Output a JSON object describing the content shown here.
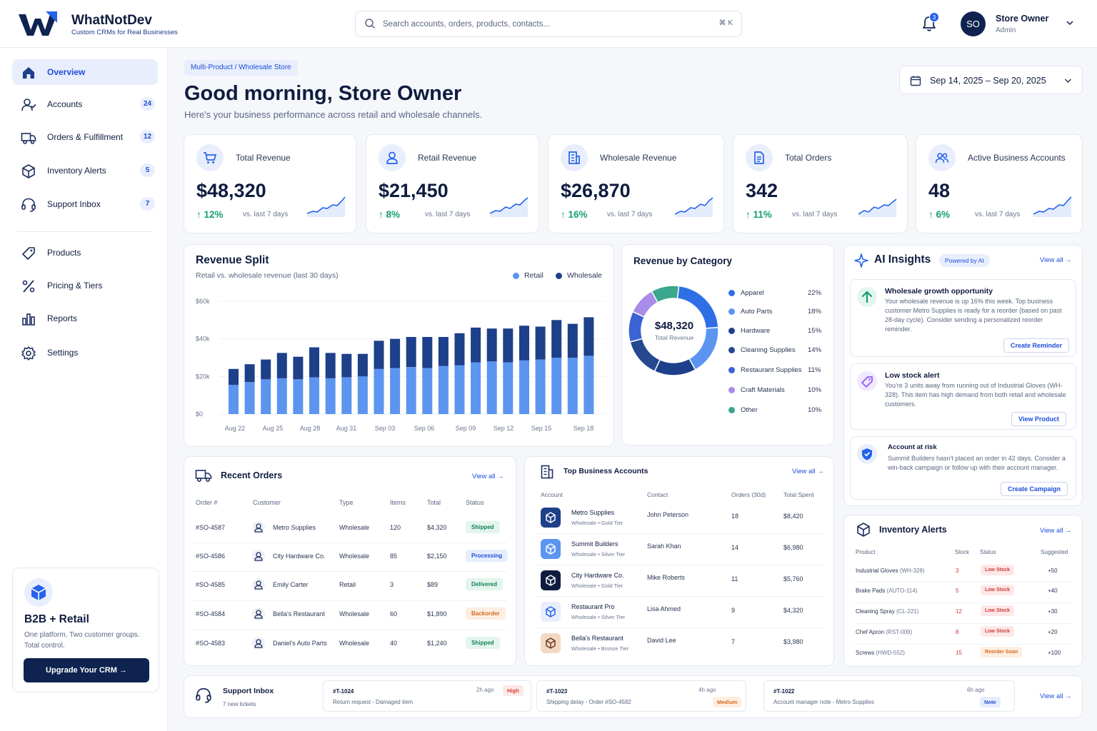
{
  "brand": {
    "name": "WhatNotDev",
    "tagline": "Custom CRMs for Real Businesses"
  },
  "search": {
    "placeholder": "Search accounts, orders, products, contacts...",
    "shortcut": "⌘ K"
  },
  "notifications": {
    "count": "3"
  },
  "user": {
    "initials": "SO",
    "name": "Store Owner",
    "role": "Admin"
  },
  "sidebar": {
    "items": [
      {
        "label": "Overview",
        "icon": "home-icon",
        "badge": ""
      },
      {
        "label": "Accounts",
        "icon": "users-icon",
        "badge": "24"
      },
      {
        "label": "Orders & Fulfillment",
        "icon": "truck-icon",
        "badge": "12"
      },
      {
        "label": "Inventory Alerts",
        "icon": "box-icon",
        "badge": "5"
      },
      {
        "label": "Support Inbox",
        "icon": "headset-icon",
        "badge": "7"
      },
      {
        "label": "Products",
        "icon": "tag-icon",
        "badge": ""
      },
      {
        "label": "Pricing & Tiers",
        "icon": "percent-icon",
        "badge": ""
      },
      {
        "label": "Reports",
        "icon": "bar-chart-icon",
        "badge": ""
      },
      {
        "label": "Settings",
        "icon": "gear-icon",
        "badge": ""
      }
    ],
    "promo": {
      "title": "B2B + Retail",
      "description": "One platform. Two customer groups. Total control.",
      "button": "Upgrade Your CRM →"
    }
  },
  "page": {
    "breadcrumb": "Multi-Product / Wholesale Store",
    "greeting": "Good morning, Store Owner",
    "subtitle": "Here's your business performance across retail and wholesale channels.",
    "date_range": "Sep 14, 2025 – Sep 20, 2025"
  },
  "kpis": [
    {
      "label": "Total Revenue",
      "value": "$48,320",
      "delta": "12%",
      "vs": "vs. last 7 days",
      "icon": "cart-icon"
    },
    {
      "label": "Retail Revenue",
      "value": "$21,450",
      "delta": "8%",
      "vs": "vs. last 7 days",
      "icon": "user-icon"
    },
    {
      "label": "Wholesale Revenue",
      "value": "$26,870",
      "delta": "16%",
      "vs": "vs. last 7 days",
      "icon": "building-icon"
    },
    {
      "label": "Total Orders",
      "value": "342",
      "delta": "11%",
      "vs": "vs. last 7 days",
      "icon": "document-icon"
    },
    {
      "label": "Active Business Accounts",
      "value": "48",
      "delta": "6%",
      "vs": "vs. last 7 days",
      "icon": "group-icon"
    }
  ],
  "revenue_split": {
    "title": "Revenue Split",
    "subtitle": "Retail vs. wholesale revenue (last 30 days)",
    "legend": [
      "Retail",
      "Wholesale"
    ]
  },
  "revenue_by_category": {
    "title": "Revenue by Category",
    "center_value": "$48,320",
    "center_label": "Total Revenue"
  },
  "chart_data": [
    {
      "type": "bar",
      "title": "Revenue Split",
      "subtitle": "Retail vs. wholesale revenue (last 30 days)",
      "stacked": true,
      "x_ticks": [
        "Aug 22",
        "Aug 25",
        "Aug 28",
        "Aug 31",
        "Sep 03",
        "Sep 06",
        "Sep 09",
        "Sep 12",
        "Sep 15",
        "Sep 18"
      ],
      "y_ticks": [
        "$0",
        "$20k",
        "$40k",
        "$60k"
      ],
      "ylim": [
        0,
        60000
      ],
      "grid": true,
      "legend": "top-right",
      "series": [
        {
          "name": "Retail",
          "color": "#5b95f0",
          "values": [
            15500,
            17000,
            18500,
            19000,
            18500,
            19500,
            19000,
            19500,
            20000,
            24000,
            24500,
            25000,
            24500,
            25500,
            26000,
            27500,
            28000,
            27500,
            28500,
            29000,
            30000,
            30000,
            31000
          ]
        },
        {
          "name": "Wholesale",
          "color": "#1e3f8a",
          "values": [
            8500,
            9500,
            10500,
            13500,
            12000,
            16000,
            13500,
            12500,
            12000,
            15000,
            15500,
            16000,
            16500,
            15500,
            17000,
            18500,
            17500,
            18000,
            18500,
            17500,
            20000,
            18000,
            20500
          ]
        }
      ]
    },
    {
      "type": "pie",
      "title": "Revenue by Category",
      "donut": true,
      "categories": [
        "Apparel",
        "Auto Parts",
        "Hardware",
        "Cleaning Supplies",
        "Restaurant Supplies",
        "Craft Materials",
        "Other"
      ],
      "values": [
        22,
        18,
        15,
        14,
        11,
        10,
        10
      ],
      "labels": [
        "22%",
        "18%",
        "15%",
        "14%",
        "11%",
        "10%",
        "10%"
      ],
      "colors": [
        "#2f6fe6",
        "#5b95f0",
        "#1e3f8a",
        "#25488f",
        "#3b63d6",
        "#a98be8",
        "#3aa68c"
      ],
      "legend": "right"
    }
  ],
  "ai_insights": {
    "title": "AI Insights",
    "chip": "Powered by AI",
    "view_all": "View all →",
    "items": [
      {
        "title": "Wholesale growth opportunity",
        "body": "Your wholesale revenue is up 16% this week. Top business customer Metro Supplies is ready for a reorder (based on past 28-day cycle). Consider sending a personalized reorder reminder.",
        "button": "Create Reminder"
      },
      {
        "title": "Low stock alert",
        "body": "You're 3 units away from running out of Industrial Gloves (WH-328). This item has high demand from both retail and wholesale customers.",
        "button": "View Product"
      },
      {
        "title": "Account at risk",
        "body": "Summit Builders hasn't placed an order in 42 days. Consider a win-back campaign or follow up with their account manager.",
        "button": "Create Campaign"
      }
    ]
  },
  "recent_orders": {
    "title": "Recent Orders",
    "view_all": "View all →",
    "columns": [
      "Order #",
      "Customer",
      "Type",
      "Items",
      "Total",
      "Status"
    ],
    "rows": [
      {
        "order": "#SO-4587",
        "customer": "Metro Supplies",
        "type": "Wholesale",
        "items": "120",
        "total": "$4,320",
        "status": "Shipped",
        "status_kind": "shipped"
      },
      {
        "order": "#SO-4586",
        "customer": "City Hardware Co.",
        "type": "Wholesale",
        "items": "85",
        "total": "$2,150",
        "status": "Processing",
        "status_kind": "processing"
      },
      {
        "order": "#SO-4585",
        "customer": "Emily Carter",
        "type": "Retail",
        "items": "3",
        "total": "$89",
        "status": "Delivered",
        "status_kind": "delivered"
      },
      {
        "order": "#SO-4584",
        "customer": "Bella's Restaurant",
        "type": "Wholesale",
        "items": "60",
        "total": "$1,890",
        "status": "Backorder",
        "status_kind": "backorder"
      },
      {
        "order": "#SO-4583",
        "customer": "Daniel's Auto Parts",
        "type": "Wholesale",
        "items": "40",
        "total": "$1,240",
        "status": "Shipped",
        "status_kind": "shipped"
      }
    ]
  },
  "top_accounts": {
    "title": "Top Business Accounts",
    "view_all": "View all →",
    "columns": [
      "Account",
      "Contact",
      "Orders (30d)",
      "Total Spent"
    ],
    "rows": [
      {
        "name": "Metro Supplies",
        "tier": "Wholesale • Gold Tier",
        "contact": "John Peterson",
        "orders": "18",
        "spent": "$8,420"
      },
      {
        "name": "Summit Builders",
        "tier": "Wholesale • Silver Tier",
        "contact": "Sarah Khan",
        "orders": "14",
        "spent": "$6,980"
      },
      {
        "name": "City Hardware Co.",
        "tier": "Wholesale • Gold Tier",
        "contact": "Mike Roberts",
        "orders": "11",
        "spent": "$5,760"
      },
      {
        "name": "Restaurant Pro",
        "tier": "Wholesale • Silver Tier",
        "contact": "Lisa Ahmed",
        "orders": "9",
        "spent": "$4,320"
      },
      {
        "name": "Bella's Restaurant",
        "tier": "Wholesale • Bronze Tier",
        "contact": "David Lee",
        "orders": "7",
        "spent": "$3,980"
      }
    ]
  },
  "inventory_alerts": {
    "title": "Inventory Alerts",
    "view_all": "View all →",
    "columns": [
      "Product",
      "Stock",
      "Status",
      "Suggested"
    ],
    "rows": [
      {
        "product": "Industrial Gloves",
        "sku": "(WH-328)",
        "stock": "3",
        "status": "Low Stock",
        "kind": "low",
        "suggested": "+50"
      },
      {
        "product": "Brake Pads",
        "sku": "(AUTO-114)",
        "stock": "5",
        "status": "Low Stock",
        "kind": "low",
        "suggested": "+40"
      },
      {
        "product": "Cleaning Spray",
        "sku": "(CL-221)",
        "stock": "12",
        "status": "Low Stock",
        "kind": "low",
        "suggested": "+30"
      },
      {
        "product": "Chef Apron",
        "sku": "(RST-009)",
        "stock": "8",
        "status": "Low Stock",
        "kind": "low",
        "suggested": "+20"
      },
      {
        "product": "Screws",
        "sku": "(HWD-552)",
        "stock": "15",
        "status": "Reorder Soon",
        "kind": "reorder",
        "suggested": "+100"
      }
    ]
  },
  "support_inbox": {
    "title": "Support Inbox",
    "subtitle": "7 new tickets",
    "view_all": "View all →",
    "tickets": [
      {
        "id": "#T-1024",
        "ago": "2h ago",
        "desc": "Return request - Damaged item",
        "priority": "High",
        "kind": "high"
      },
      {
        "id": "#T-1023",
        "ago": "4h ago",
        "desc": "Shipping delay - Order #SO-4582",
        "priority": "Medium",
        "kind": "medium"
      },
      {
        "id": "#T-1022",
        "ago": "6h ago",
        "desc": "Account manager note - Metro Supplies",
        "priority": "Note",
        "kind": "note"
      }
    ]
  }
}
